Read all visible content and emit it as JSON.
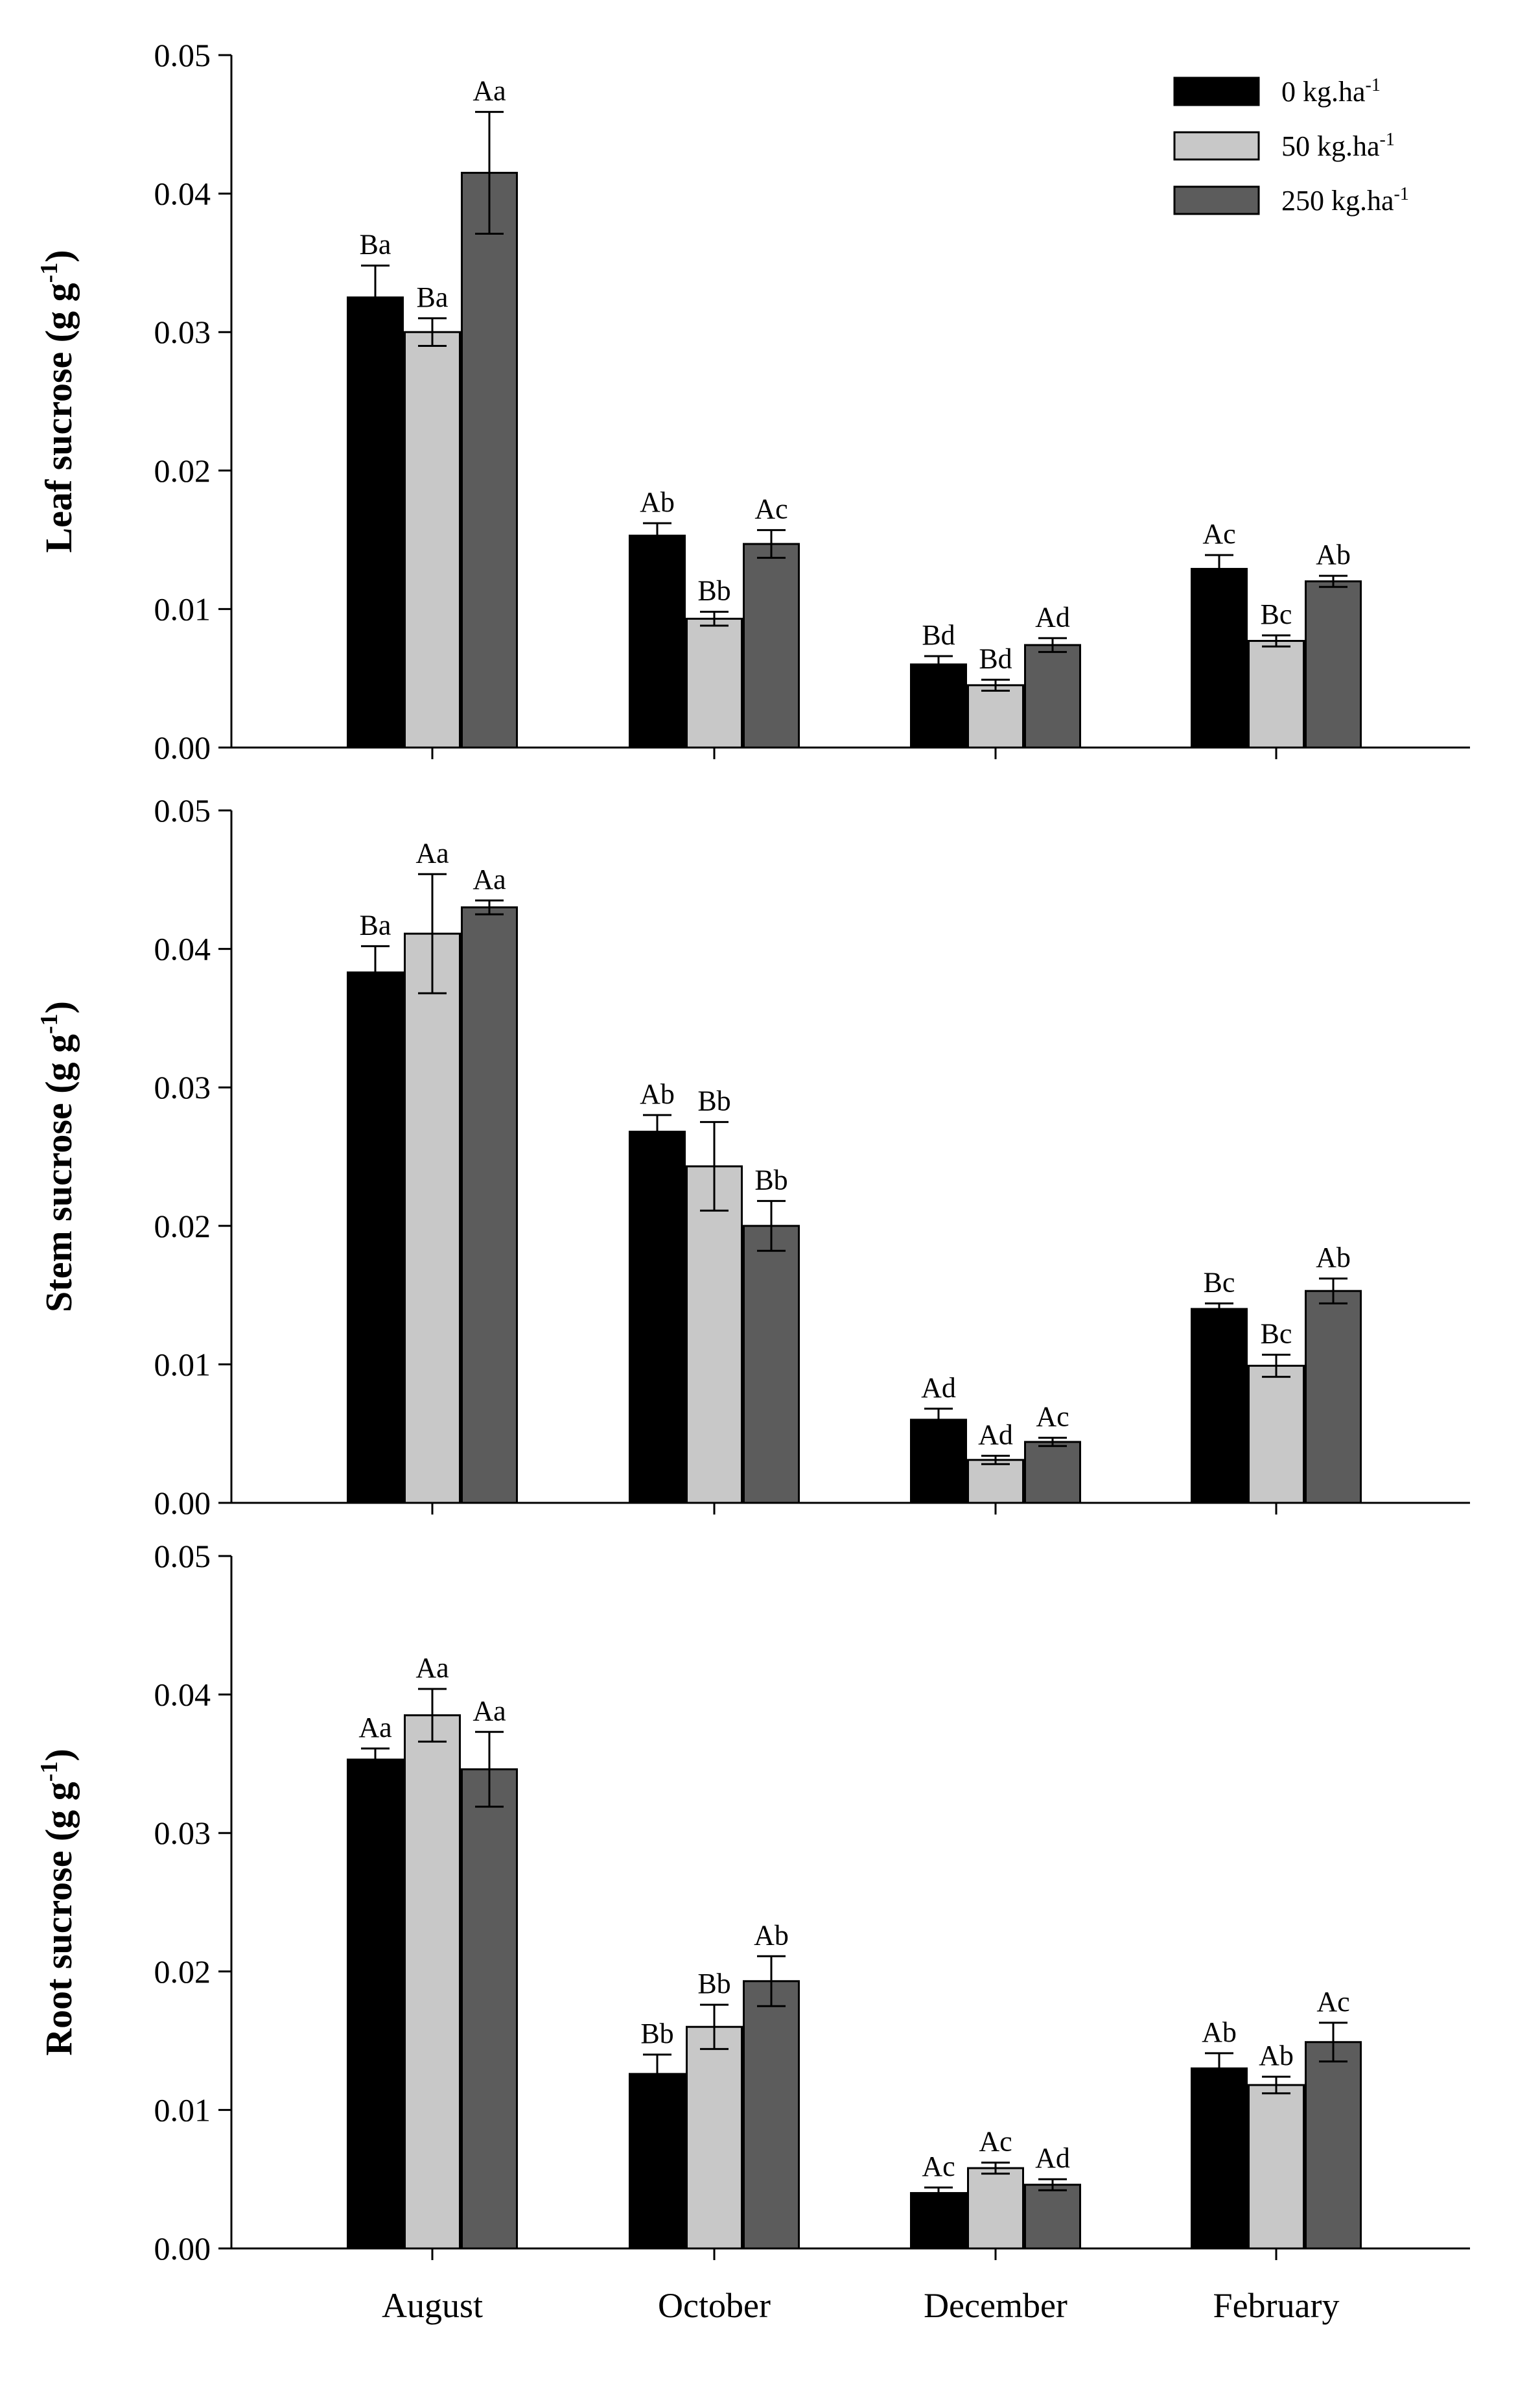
{
  "chart_data": {
    "type": "bar",
    "categories": [
      "August",
      "October",
      "December",
      "February"
    ],
    "legend": {
      "position": "top-right",
      "entries": [
        {
          "name": "0 kg.ha",
          "sup": "-1",
          "color": "#000000"
        },
        {
          "name": "50 kg.ha",
          "sup": "-1",
          "color": "#c8c8c8"
        },
        {
          "name": "250 kg.ha",
          "sup": "-1",
          "color": "#5c5c5c"
        }
      ]
    },
    "ylim": [
      0,
      0.05
    ],
    "yticks": [
      "0.00",
      "0.01",
      "0.02",
      "0.03",
      "0.04",
      "0.05"
    ],
    "panels": [
      {
        "ylabel": "Leaf sucrose (g g",
        "ylabel_sup": "-1",
        "ylabel_close": ")",
        "series": [
          {
            "name": "0 kg.ha-1",
            "values": [
              0.0325,
              0.0153,
              0.006,
              0.0129
            ],
            "errors": [
              0.0023,
              0.0009,
              0.0006,
              0.001
            ],
            "labels": [
              "Ba",
              "Ab",
              "Bd",
              "Ac"
            ]
          },
          {
            "name": "50 kg.ha-1",
            "values": [
              0.03,
              0.0093,
              0.0045,
              0.0077
            ],
            "errors": [
              0.001,
              0.0005,
              0.0004,
              0.0004
            ],
            "labels": [
              "Ba",
              "Bb",
              "Bd",
              "Bc"
            ]
          },
          {
            "name": "250 kg.ha-1",
            "values": [
              0.0415,
              0.0147,
              0.0074,
              0.012
            ],
            "errors": [
              0.0044,
              0.001,
              0.0005,
              0.0004
            ],
            "labels": [
              "Aa",
              "Ac",
              "Ad",
              "Ab"
            ]
          }
        ]
      },
      {
        "ylabel": "Stem sucrose (g g",
        "ylabel_sup": "-1",
        "ylabel_close": ")",
        "series": [
          {
            "name": "0 kg.ha-1",
            "values": [
              0.0383,
              0.0268,
              0.006,
              0.014
            ],
            "errors": [
              0.0019,
              0.0012,
              0.0008,
              0.0004
            ],
            "labels": [
              "Ba",
              "Ab",
              "Ad",
              "Bc"
            ]
          },
          {
            "name": "50 kg.ha-1",
            "values": [
              0.0411,
              0.0243,
              0.0031,
              0.0099
            ],
            "errors": [
              0.0043,
              0.0032,
              0.0003,
              0.0008
            ],
            "labels": [
              "Aa",
              "Bb",
              "Ad",
              "Bc"
            ]
          },
          {
            "name": "250 kg.ha-1",
            "values": [
              0.043,
              0.02,
              0.0044,
              0.0153
            ],
            "errors": [
              0.0005,
              0.0018,
              0.0003,
              0.0009
            ],
            "labels": [
              "Aa",
              "Bb",
              "Ac",
              "Ab"
            ]
          }
        ]
      },
      {
        "ylabel": "Root sucrose (g g",
        "ylabel_sup": "-1",
        "ylabel_close": ")",
        "series": [
          {
            "name": "0 kg.ha-1",
            "values": [
              0.0353,
              0.0126,
              0.004,
              0.013
            ],
            "errors": [
              0.0008,
              0.0014,
              0.0004,
              0.0011
            ],
            "labels": [
              "Aa",
              "Bb",
              "Ac",
              "Ab"
            ]
          },
          {
            "name": "50 kg.ha-1",
            "values": [
              0.0385,
              0.016,
              0.0058,
              0.0118
            ],
            "errors": [
              0.0019,
              0.0016,
              0.0004,
              0.0006
            ],
            "labels": [
              "Aa",
              "Bb",
              "Ac",
              "Ab"
            ]
          },
          {
            "name": "250 kg.ha-1",
            "values": [
              0.0346,
              0.0193,
              0.0046,
              0.0149
            ],
            "errors": [
              0.0027,
              0.0018,
              0.0004,
              0.0014
            ],
            "labels": [
              "Aa",
              "Ab",
              "Ad",
              "Ac"
            ]
          }
        ]
      }
    ]
  }
}
